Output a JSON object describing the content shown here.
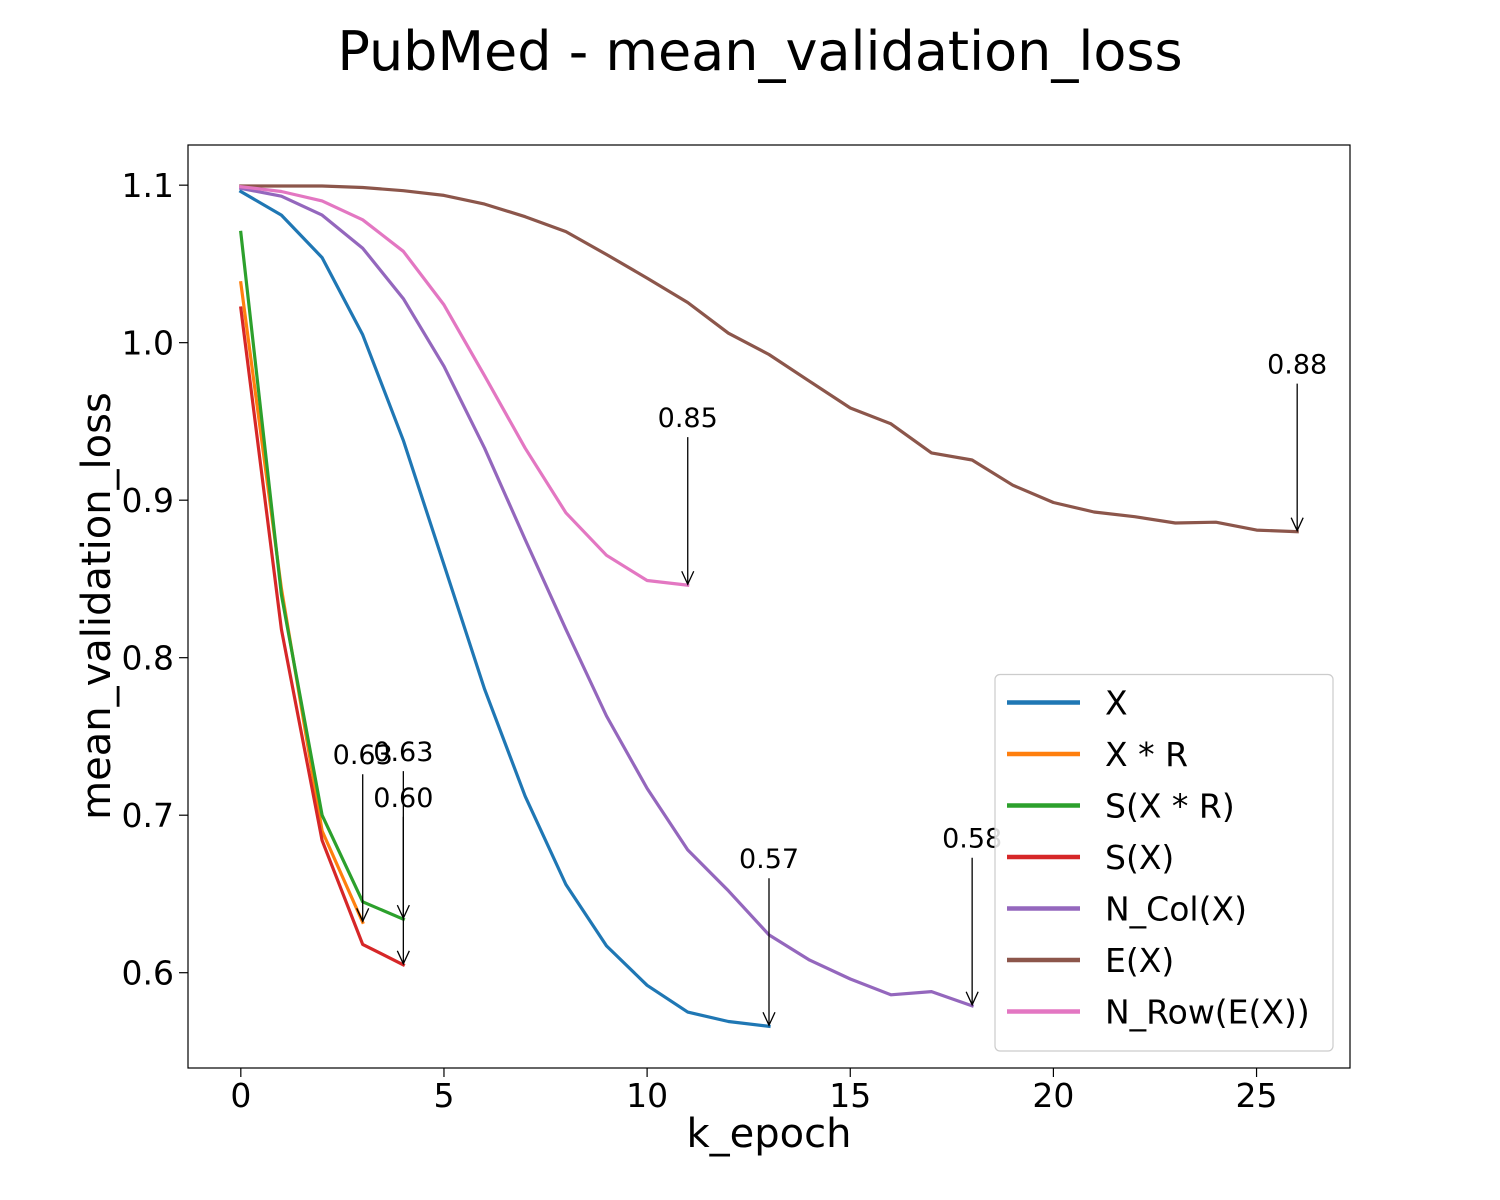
{
  "chart_data": {
    "type": "line",
    "title": "PubMed - mean_validation_loss",
    "xlabel": "k_epoch",
    "ylabel": "mean_validation_loss",
    "xlim": [
      -1.3,
      27.3
    ],
    "ylim": [
      0.5395,
      1.1255
    ],
    "xticks": [
      0,
      5,
      10,
      15,
      20,
      25
    ],
    "yticks": [
      0.6,
      0.7,
      0.8,
      0.9,
      1.0,
      1.1
    ],
    "xtick_labels": [
      "0",
      "5",
      "10",
      "15",
      "20",
      "25"
    ],
    "ytick_labels": [
      "0.6",
      "0.7",
      "0.8",
      "0.9",
      "1.0",
      "1.1"
    ],
    "grid": false,
    "legend_position": "lower-right",
    "series": [
      {
        "name": "X",
        "color": "#1f77b4",
        "x": [
          0,
          1,
          2,
          3,
          4,
          5,
          6,
          7,
          8,
          9,
          10,
          11,
          12,
          13
        ],
        "y": [
          1.096,
          1.081,
          1.054,
          1.005,
          0.938,
          0.859,
          0.78,
          0.712,
          0.656,
          0.617,
          0.592,
          0.575,
          0.569,
          0.566
        ]
      },
      {
        "name": "X * R",
        "color": "#ff7f0e",
        "x": [
          0,
          1,
          2,
          3
        ],
        "y": [
          1.038,
          0.844,
          0.69,
          0.632
        ]
      },
      {
        "name": "S(X * R)",
        "color": "#2ca02c",
        "x": [
          0,
          1,
          2,
          3,
          4
        ],
        "y": [
          1.07,
          0.84,
          0.7,
          0.645,
          0.634
        ]
      },
      {
        "name": "S(X)",
        "color": "#d62728",
        "x": [
          0,
          1,
          2,
          3,
          4
        ],
        "y": [
          1.022,
          0.818,
          0.684,
          0.618,
          0.605
        ]
      },
      {
        "name": "N_Col(X)",
        "color": "#9467bd",
        "x": [
          0,
          1,
          2,
          3,
          4,
          5,
          6,
          7,
          8,
          9,
          10,
          11,
          12,
          13,
          14,
          15,
          16,
          17,
          18
        ],
        "y": [
          1.098,
          1.093,
          1.081,
          1.06,
          1.028,
          0.985,
          0.933,
          0.875,
          0.818,
          0.763,
          0.717,
          0.678,
          0.652,
          0.624,
          0.608,
          0.596,
          0.586,
          0.588,
          0.579
        ]
      },
      {
        "name": "E(X)",
        "color": "#8c564b",
        "x": [
          0,
          1,
          2,
          3,
          4,
          5,
          6,
          7,
          8,
          9,
          10,
          11,
          12,
          13,
          14,
          15,
          16,
          17,
          18,
          19,
          20,
          21,
          22,
          23,
          24,
          25,
          26
        ],
        "y": [
          1.0995,
          1.0995,
          1.0995,
          1.0985,
          1.0965,
          1.0935,
          1.088,
          1.08,
          1.0705,
          1.056,
          1.041,
          1.0255,
          1.006,
          0.9925,
          0.9755,
          0.9585,
          0.9485,
          0.93,
          0.9255,
          0.9095,
          0.8985,
          0.8925,
          0.8895,
          0.8855,
          0.886,
          0.881,
          0.88
        ]
      },
      {
        "name": "N_Row(E(X))",
        "color": "#e377c2",
        "x": [
          0,
          1,
          2,
          3,
          4,
          5,
          6,
          7,
          8,
          9,
          10,
          11
        ],
        "y": [
          1.099,
          1.096,
          1.09,
          1.078,
          1.058,
          1.024,
          0.979,
          0.933,
          0.892,
          0.865,
          0.849,
          0.846
        ]
      }
    ],
    "annotations": [
      {
        "text": "0.57",
        "x": 13,
        "y": 0.566,
        "text_x": 13,
        "text_y": 0.66
      },
      {
        "text": "0.63",
        "x": 3,
        "y": 0.632,
        "text_x": 3,
        "text_y": 0.726
      },
      {
        "text": "0.63",
        "x": 4,
        "y": 0.634,
        "text_x": 4,
        "text_y": 0.728
      },
      {
        "text": "0.60",
        "x": 4,
        "y": 0.605,
        "text_x": 4,
        "text_y": 0.699
      },
      {
        "text": "0.58",
        "x": 18,
        "y": 0.579,
        "text_x": 18,
        "text_y": 0.673
      },
      {
        "text": "0.88",
        "x": 26,
        "y": 0.88,
        "text_x": 26,
        "text_y": 0.974
      },
      {
        "text": "0.85",
        "x": 11,
        "y": 0.846,
        "text_x": 11,
        "text_y": 0.94
      }
    ]
  }
}
